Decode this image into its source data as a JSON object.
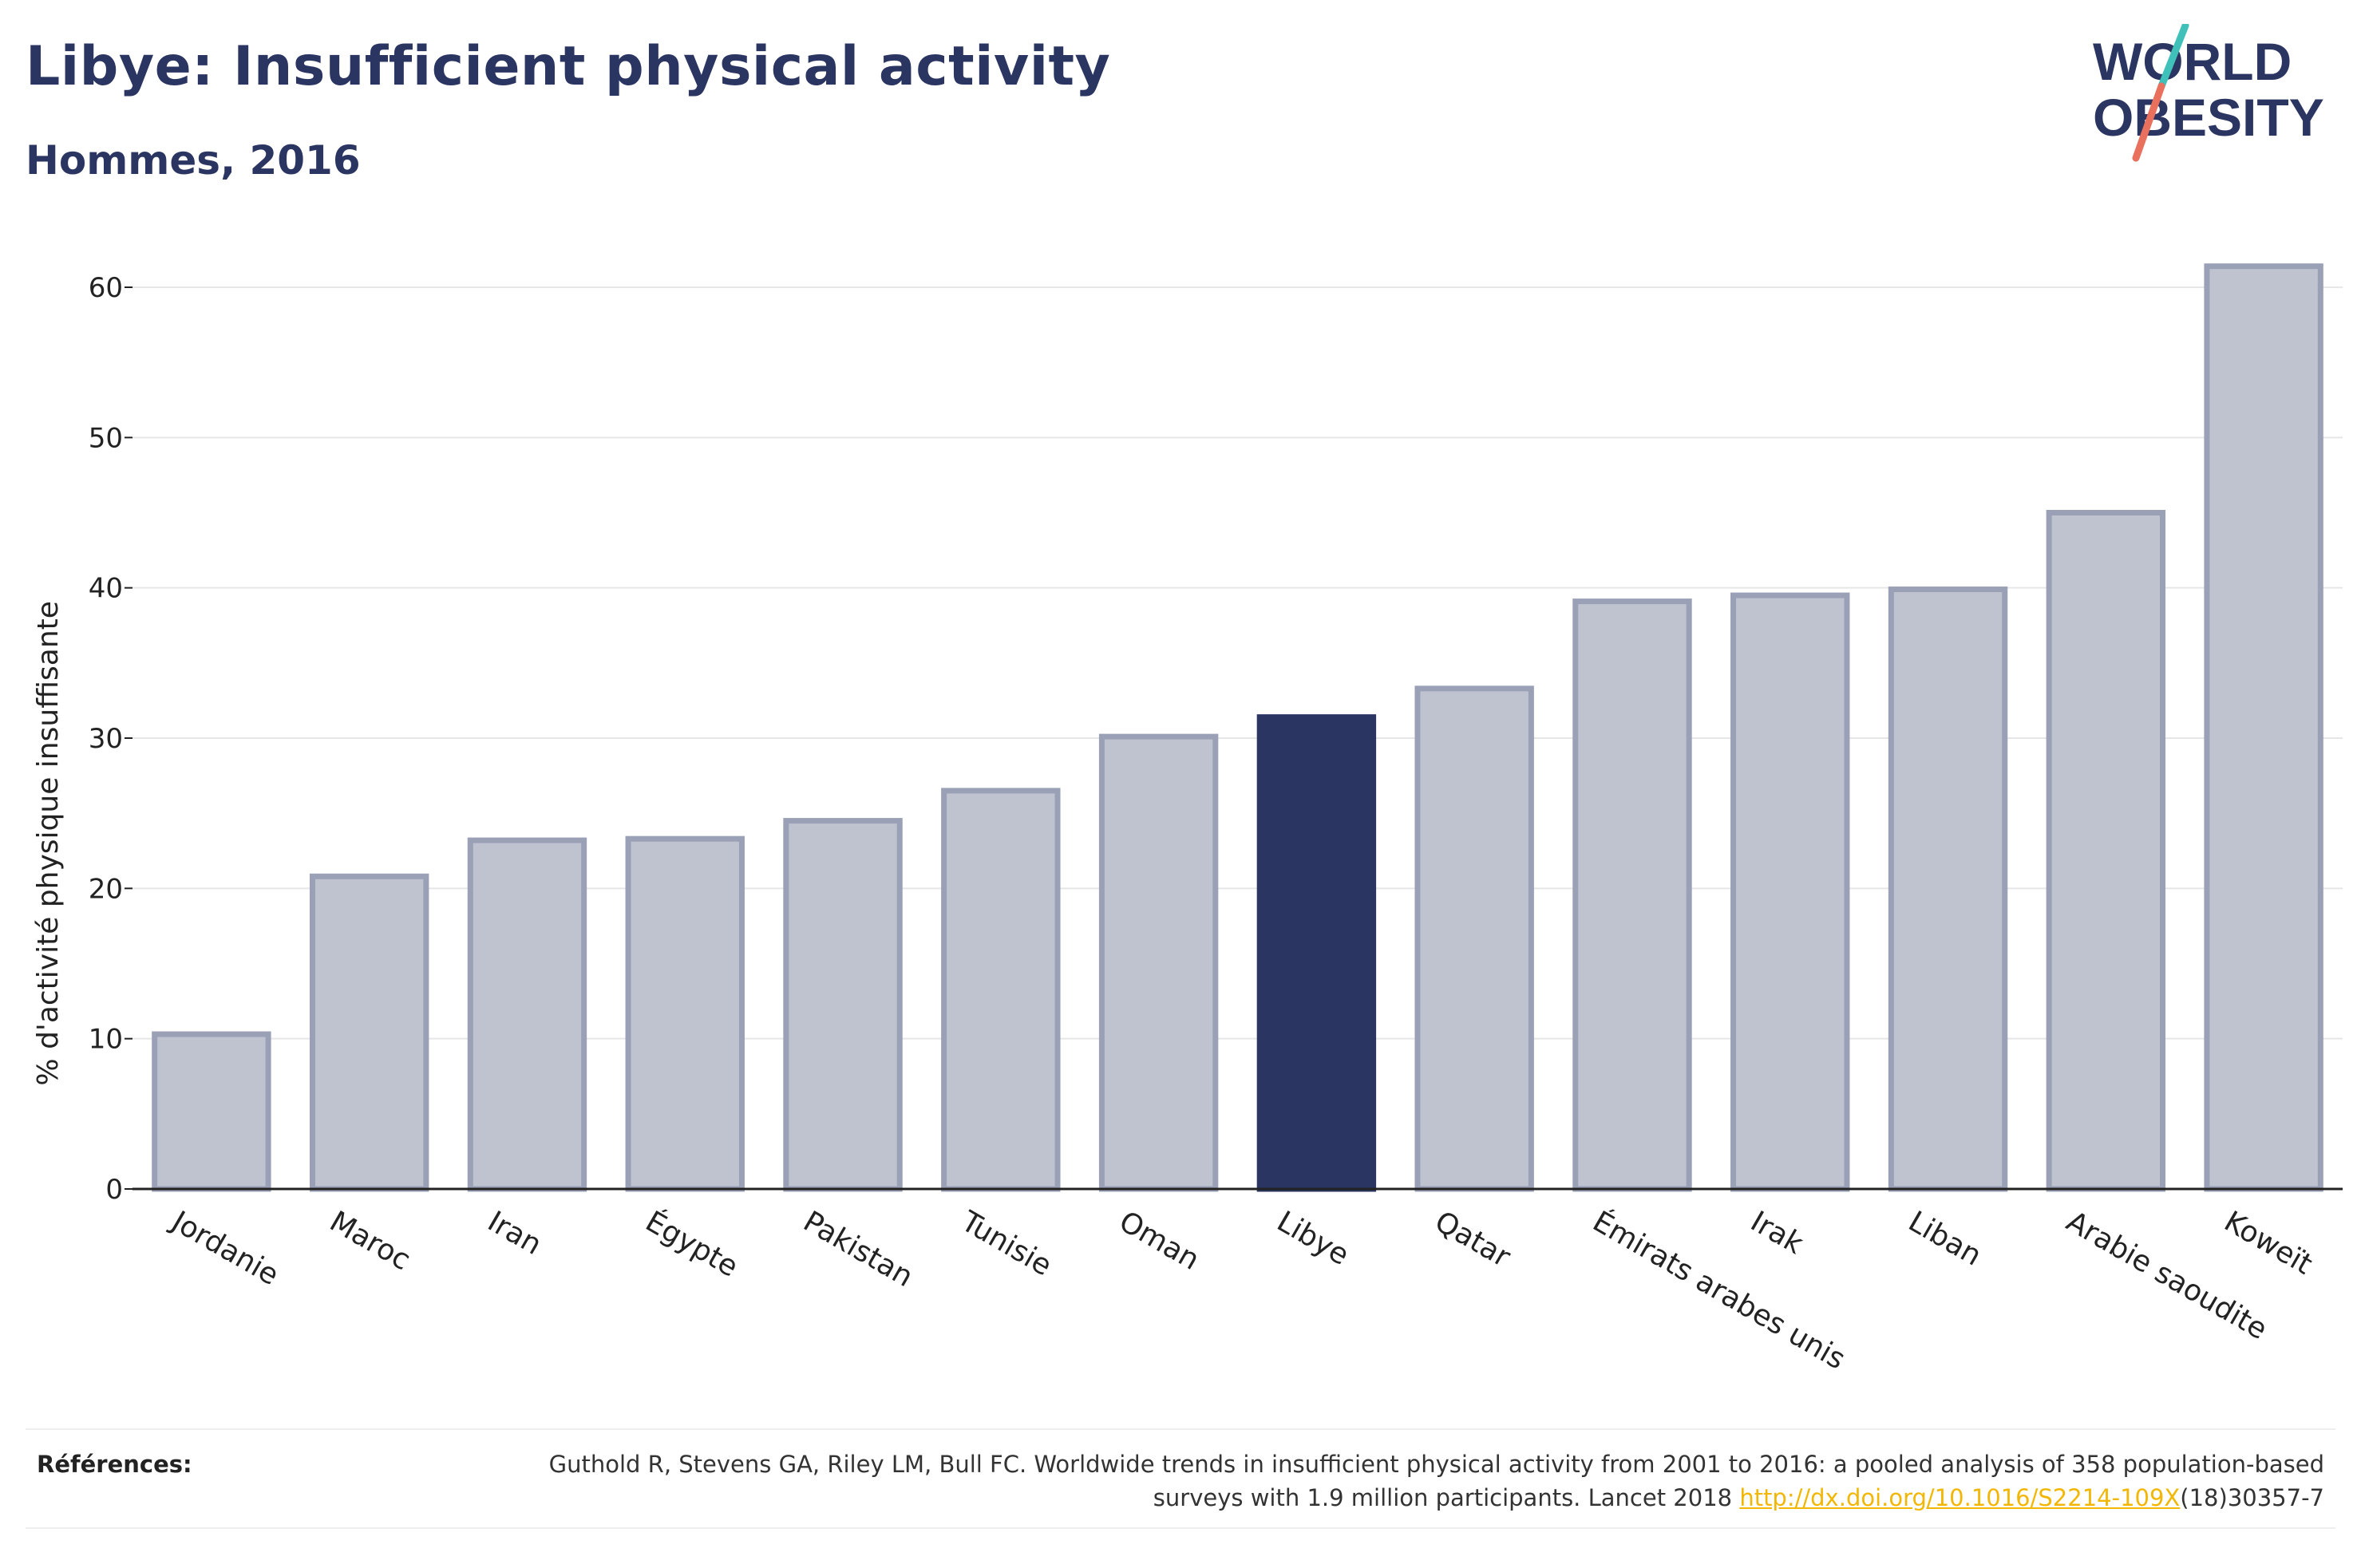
{
  "header": {
    "title": "Libye: Insufficient physical activity",
    "subtitle": "Hommes, 2016"
  },
  "logo": {
    "line1": "WORLD",
    "line2": "OBESITY",
    "colors": {
      "text": "#2b3561",
      "slash_top": "#3fc1b9",
      "slash_bottom": "#e8705c"
    }
  },
  "chart_data": {
    "type": "bar",
    "ylabel": "% d'activité physique insuffisante",
    "xlabel": "",
    "ylim": [
      0,
      65
    ],
    "yticks": [
      0,
      10,
      20,
      30,
      40,
      50,
      60
    ],
    "grid": true,
    "categories": [
      "Jordanie",
      "Maroc",
      "Iran",
      "Égypte",
      "Pakistan",
      "Tunisie",
      "Oman",
      "Libye",
      "Qatar",
      "Émirats arabes unis",
      "Irak",
      "Liban",
      "Arabie saoudite",
      "Koweït"
    ],
    "values": [
      10.3,
      20.8,
      23.2,
      23.3,
      24.5,
      26.5,
      30.1,
      31.4,
      33.3,
      39.1,
      39.5,
      39.9,
      45.0,
      61.4
    ],
    "highlight": "Libye",
    "colors": {
      "highlight": "#2b3561",
      "bar_fill": "#bfc3d0",
      "bar_stroke": "#9aa0b6"
    }
  },
  "references": {
    "label": "Références:",
    "text_before_link": "Guthold R, Stevens GA, Riley LM, Bull FC. Worldwide trends in insufficient physical activity from 2001 to 2016: a pooled analysis of 358 population-based surveys with 1.9 million participants. Lancet 2018 ",
    "link_text": "http://dx.doi.org/10.1016/S2214-109X",
    "text_after_link": "(18)30357-7"
  }
}
